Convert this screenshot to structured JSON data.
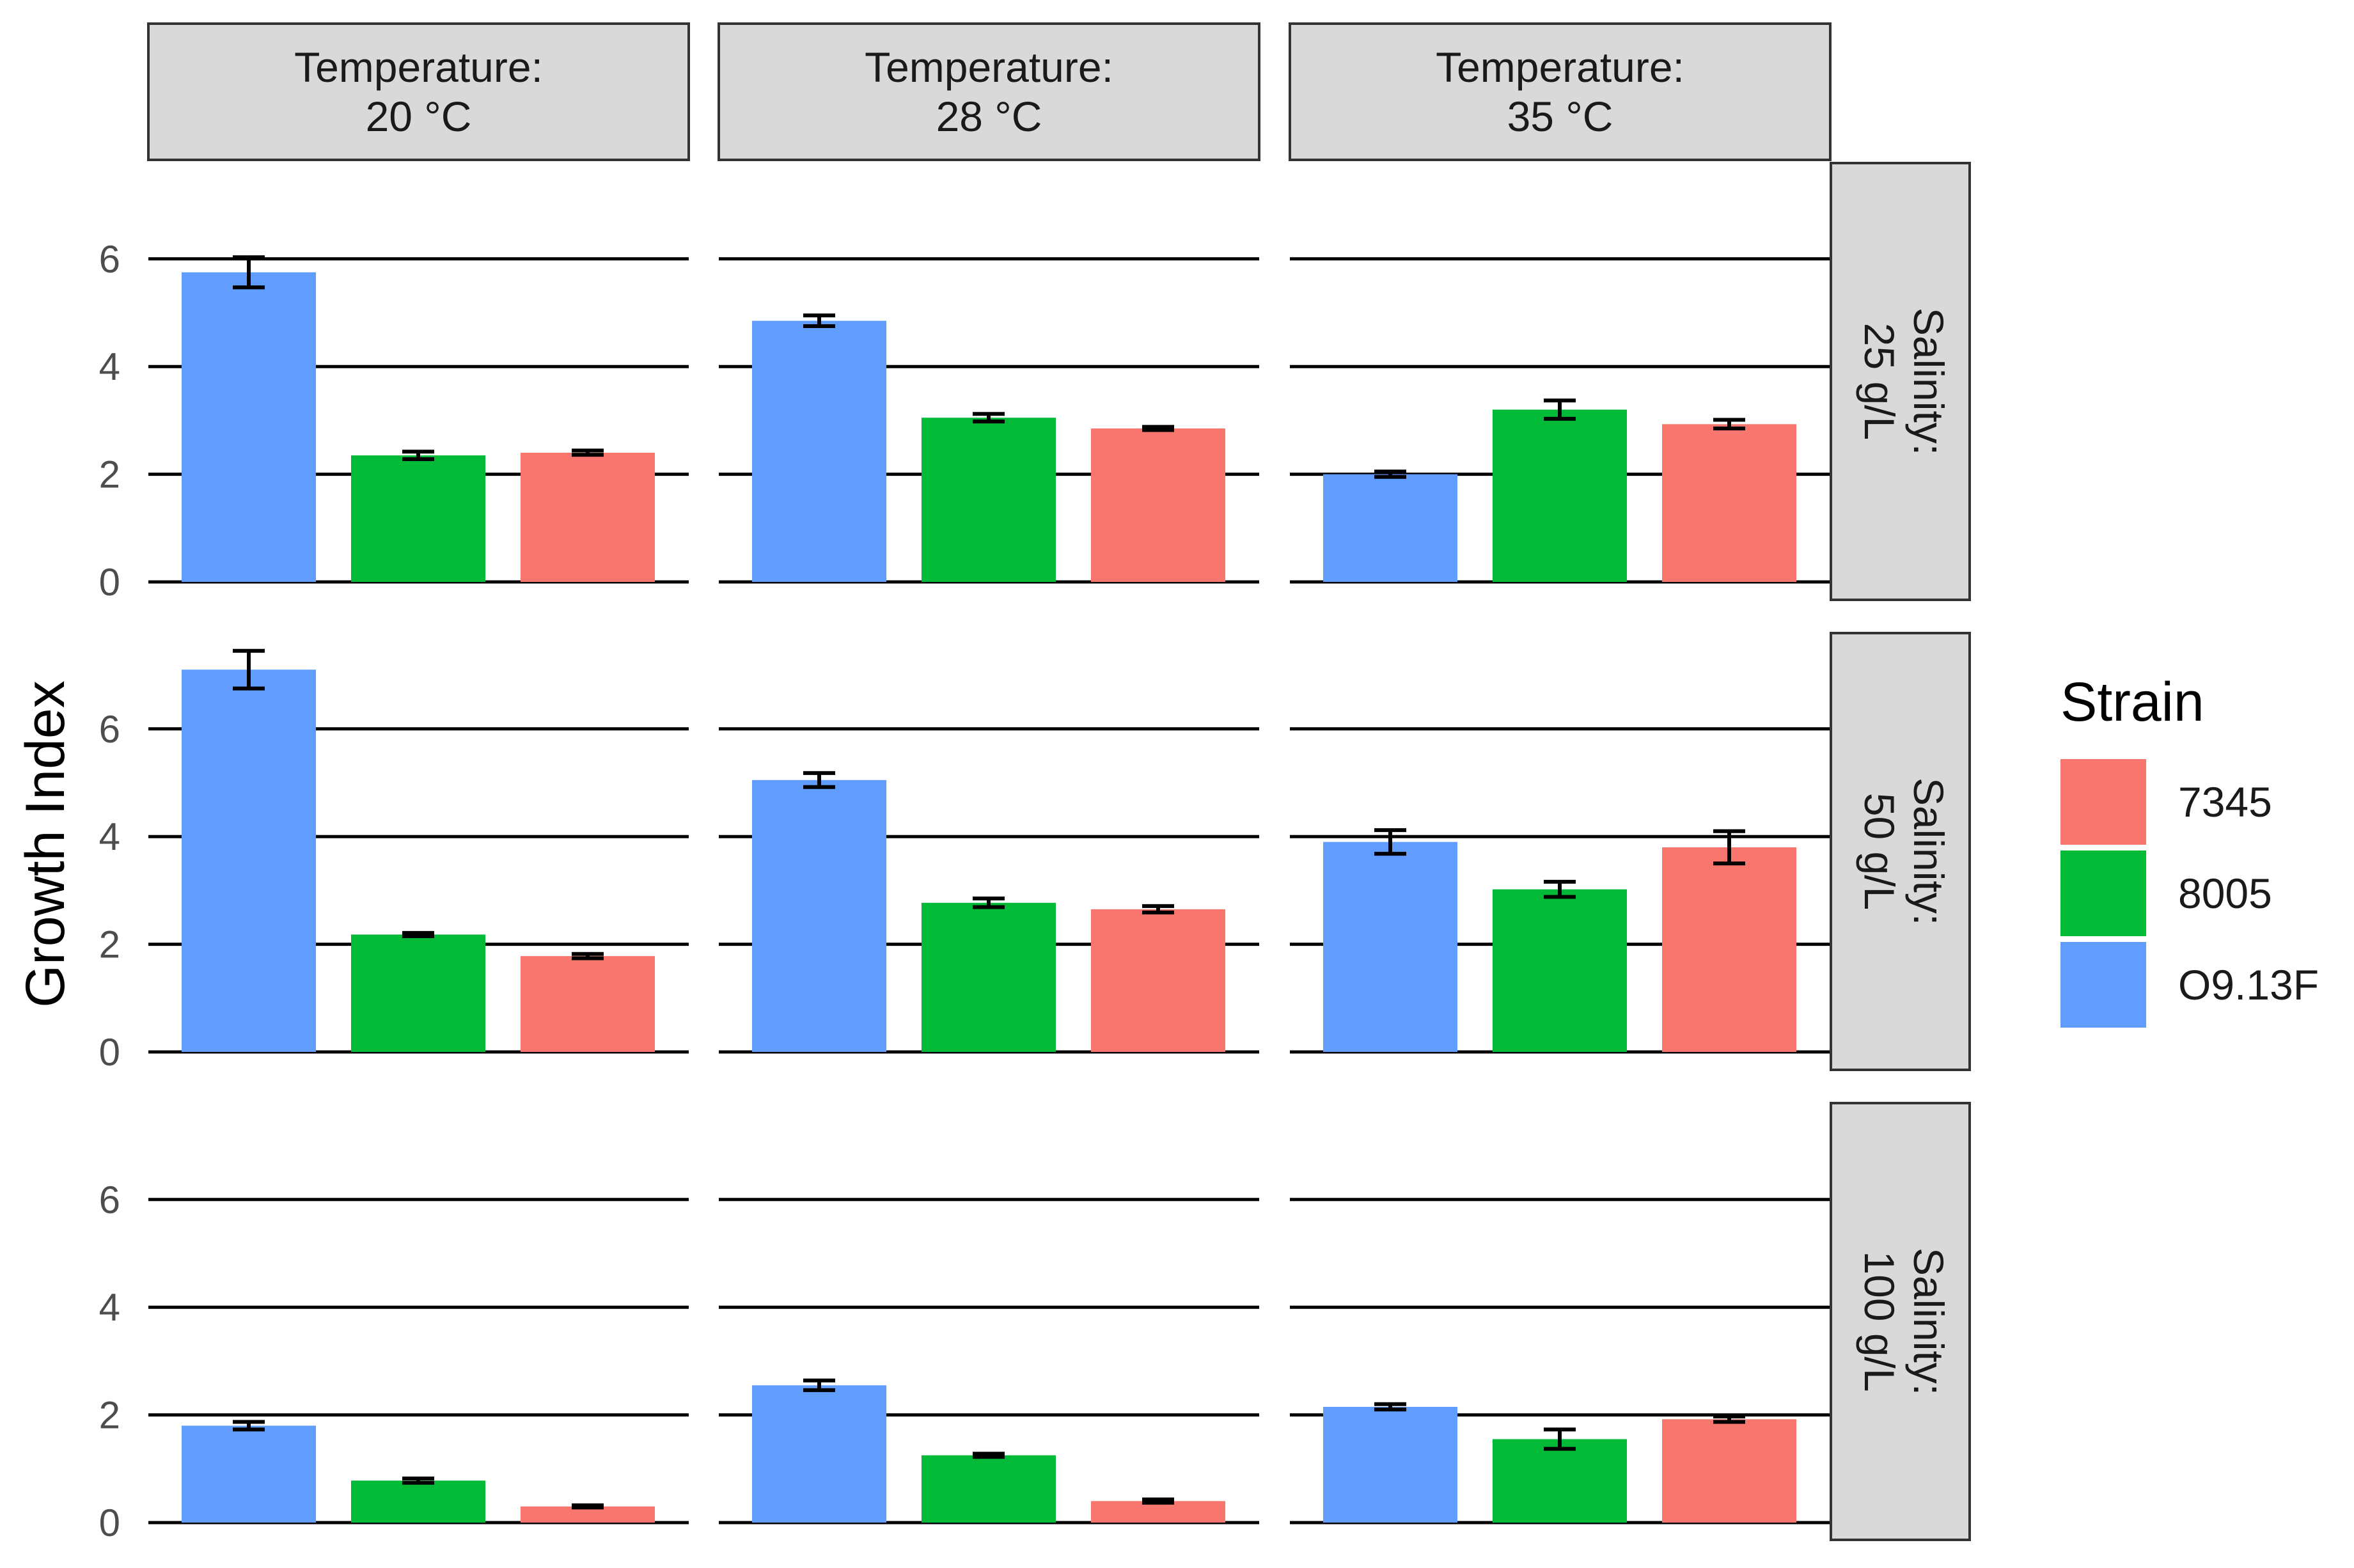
{
  "chart_data": {
    "type": "bar",
    "facet_rows_label": "Salinity",
    "facet_cols_label": "Temperature",
    "col_facets": [
      {
        "line1": "Temperature:",
        "line2": "20 °C"
      },
      {
        "line1": "Temperature:",
        "line2": "28 °C"
      },
      {
        "line1": "Temperature:",
        "line2": "35 °C"
      }
    ],
    "row_facets": [
      {
        "line1": "Salinity:",
        "line2": "25 g/L"
      },
      {
        "line1": "Salinity:",
        "line2": "50 g/L"
      },
      {
        "line1": "Salinity:",
        "line2": "100 g/L"
      }
    ],
    "ylabel": "Growth Index",
    "xlabel": "",
    "ylim": [
      0,
      7.4
    ],
    "yticks": [
      "0",
      "2",
      "4",
      "6"
    ],
    "legend": {
      "title": "Strain",
      "placement": "right",
      "entries": [
        {
          "label": "7345",
          "color": "#F8766D"
        },
        {
          "label": "8005",
          "color": "#00BA38"
        },
        {
          "label": "O9.13F",
          "color": "#619CFF"
        }
      ]
    },
    "bar_order": [
      "O9.13F",
      "8005",
      "7345"
    ],
    "colors": {
      "O9.13F": "#619CFF",
      "8005": "#00BA38",
      "7345": "#F8766D"
    },
    "panels": [
      [
        {
          "O9.13F": [
            5.75,
            0.28
          ],
          "8005": [
            2.35,
            0.07
          ],
          "7345": [
            2.4,
            0.04
          ]
        },
        {
          "O9.13F": [
            4.85,
            0.1
          ],
          "8005": [
            3.05,
            0.07
          ],
          "7345": [
            2.85,
            0.03
          ]
        },
        {
          "O9.13F": [
            2.0,
            0.05
          ],
          "8005": [
            3.2,
            0.17
          ],
          "7345": [
            2.93,
            0.08
          ]
        }
      ],
      [
        {
          "O9.13F": [
            7.1,
            0.35
          ],
          "8005": [
            2.18,
            0.03
          ],
          "7345": [
            1.78,
            0.04
          ]
        },
        {
          "O9.13F": [
            5.05,
            0.13
          ],
          "8005": [
            2.77,
            0.08
          ],
          "7345": [
            2.65,
            0.06
          ]
        },
        {
          "O9.13F": [
            3.9,
            0.22
          ],
          "8005": [
            3.02,
            0.14
          ],
          "7345": [
            3.8,
            0.3
          ]
        }
      ],
      [
        {
          "O9.13F": [
            1.8,
            0.07
          ],
          "8005": [
            0.78,
            0.04
          ],
          "7345": [
            0.3,
            0.02
          ]
        },
        {
          "O9.13F": [
            2.55,
            0.09
          ],
          "8005": [
            1.25,
            0.03
          ],
          "7345": [
            0.4,
            0.03
          ]
        },
        {
          "O9.13F": [
            2.15,
            0.05
          ],
          "8005": [
            1.55,
            0.18
          ],
          "7345": [
            1.92,
            0.05
          ]
        }
      ]
    ]
  }
}
